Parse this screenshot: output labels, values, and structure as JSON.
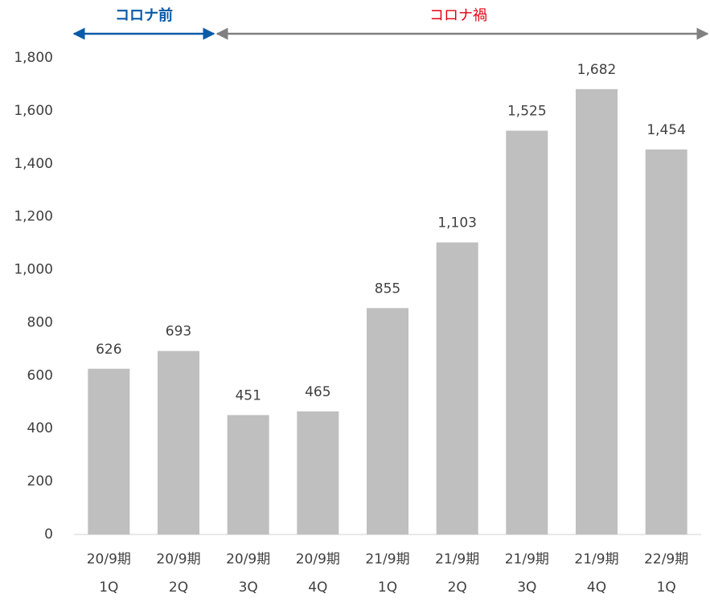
{
  "chart_data": {
    "type": "bar",
    "categories": [
      [
        "20/9期",
        "1Q"
      ],
      [
        "20/9期",
        "2Q"
      ],
      [
        "20/9期",
        "3Q"
      ],
      [
        "20/9期",
        "4Q"
      ],
      [
        "21/9期",
        "1Q"
      ],
      [
        "21/9期",
        "2Q"
      ],
      [
        "21/9期",
        "3Q"
      ],
      [
        "21/9期",
        "4Q"
      ],
      [
        "22/9期",
        "1Q"
      ]
    ],
    "values": [
      626,
      693,
      451,
      465,
      855,
      1103,
      1525,
      1682,
      1454
    ],
    "value_labels": [
      "626",
      "693",
      "451",
      "465",
      "855",
      "1,103",
      "1,525",
      "1,682",
      "1,454"
    ],
    "color": "#bfbfbf",
    "ylim": [
      0,
      1800
    ],
    "yticks": [
      0,
      200,
      400,
      600,
      800,
      {
        "value": 1000,
        "label": "1,000"
      },
      {
        "value": 1200,
        "label": "1,200"
      },
      {
        "value": 1400,
        "label": "1,400"
      },
      {
        "value": 1600,
        "label": "1,600"
      },
      {
        "value": 1800,
        "label": "1,800"
      }
    ],
    "annotations": [
      {
        "text": "コロナ前",
        "color": "#0a5aa8"
      },
      {
        "text": "コロナ禍",
        "color": "#e60012"
      }
    ]
  }
}
